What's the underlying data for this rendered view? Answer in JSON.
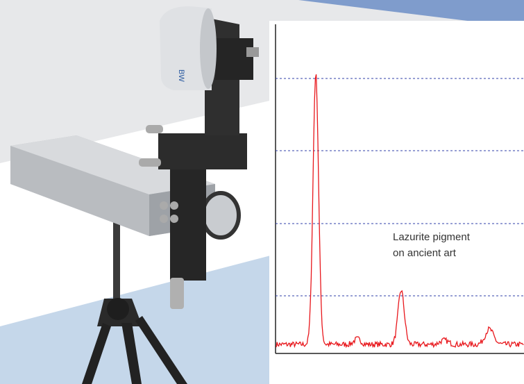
{
  "annotation": {
    "lines": [
      "Lazurite pigment",
      "on ancient art"
    ]
  }
}
